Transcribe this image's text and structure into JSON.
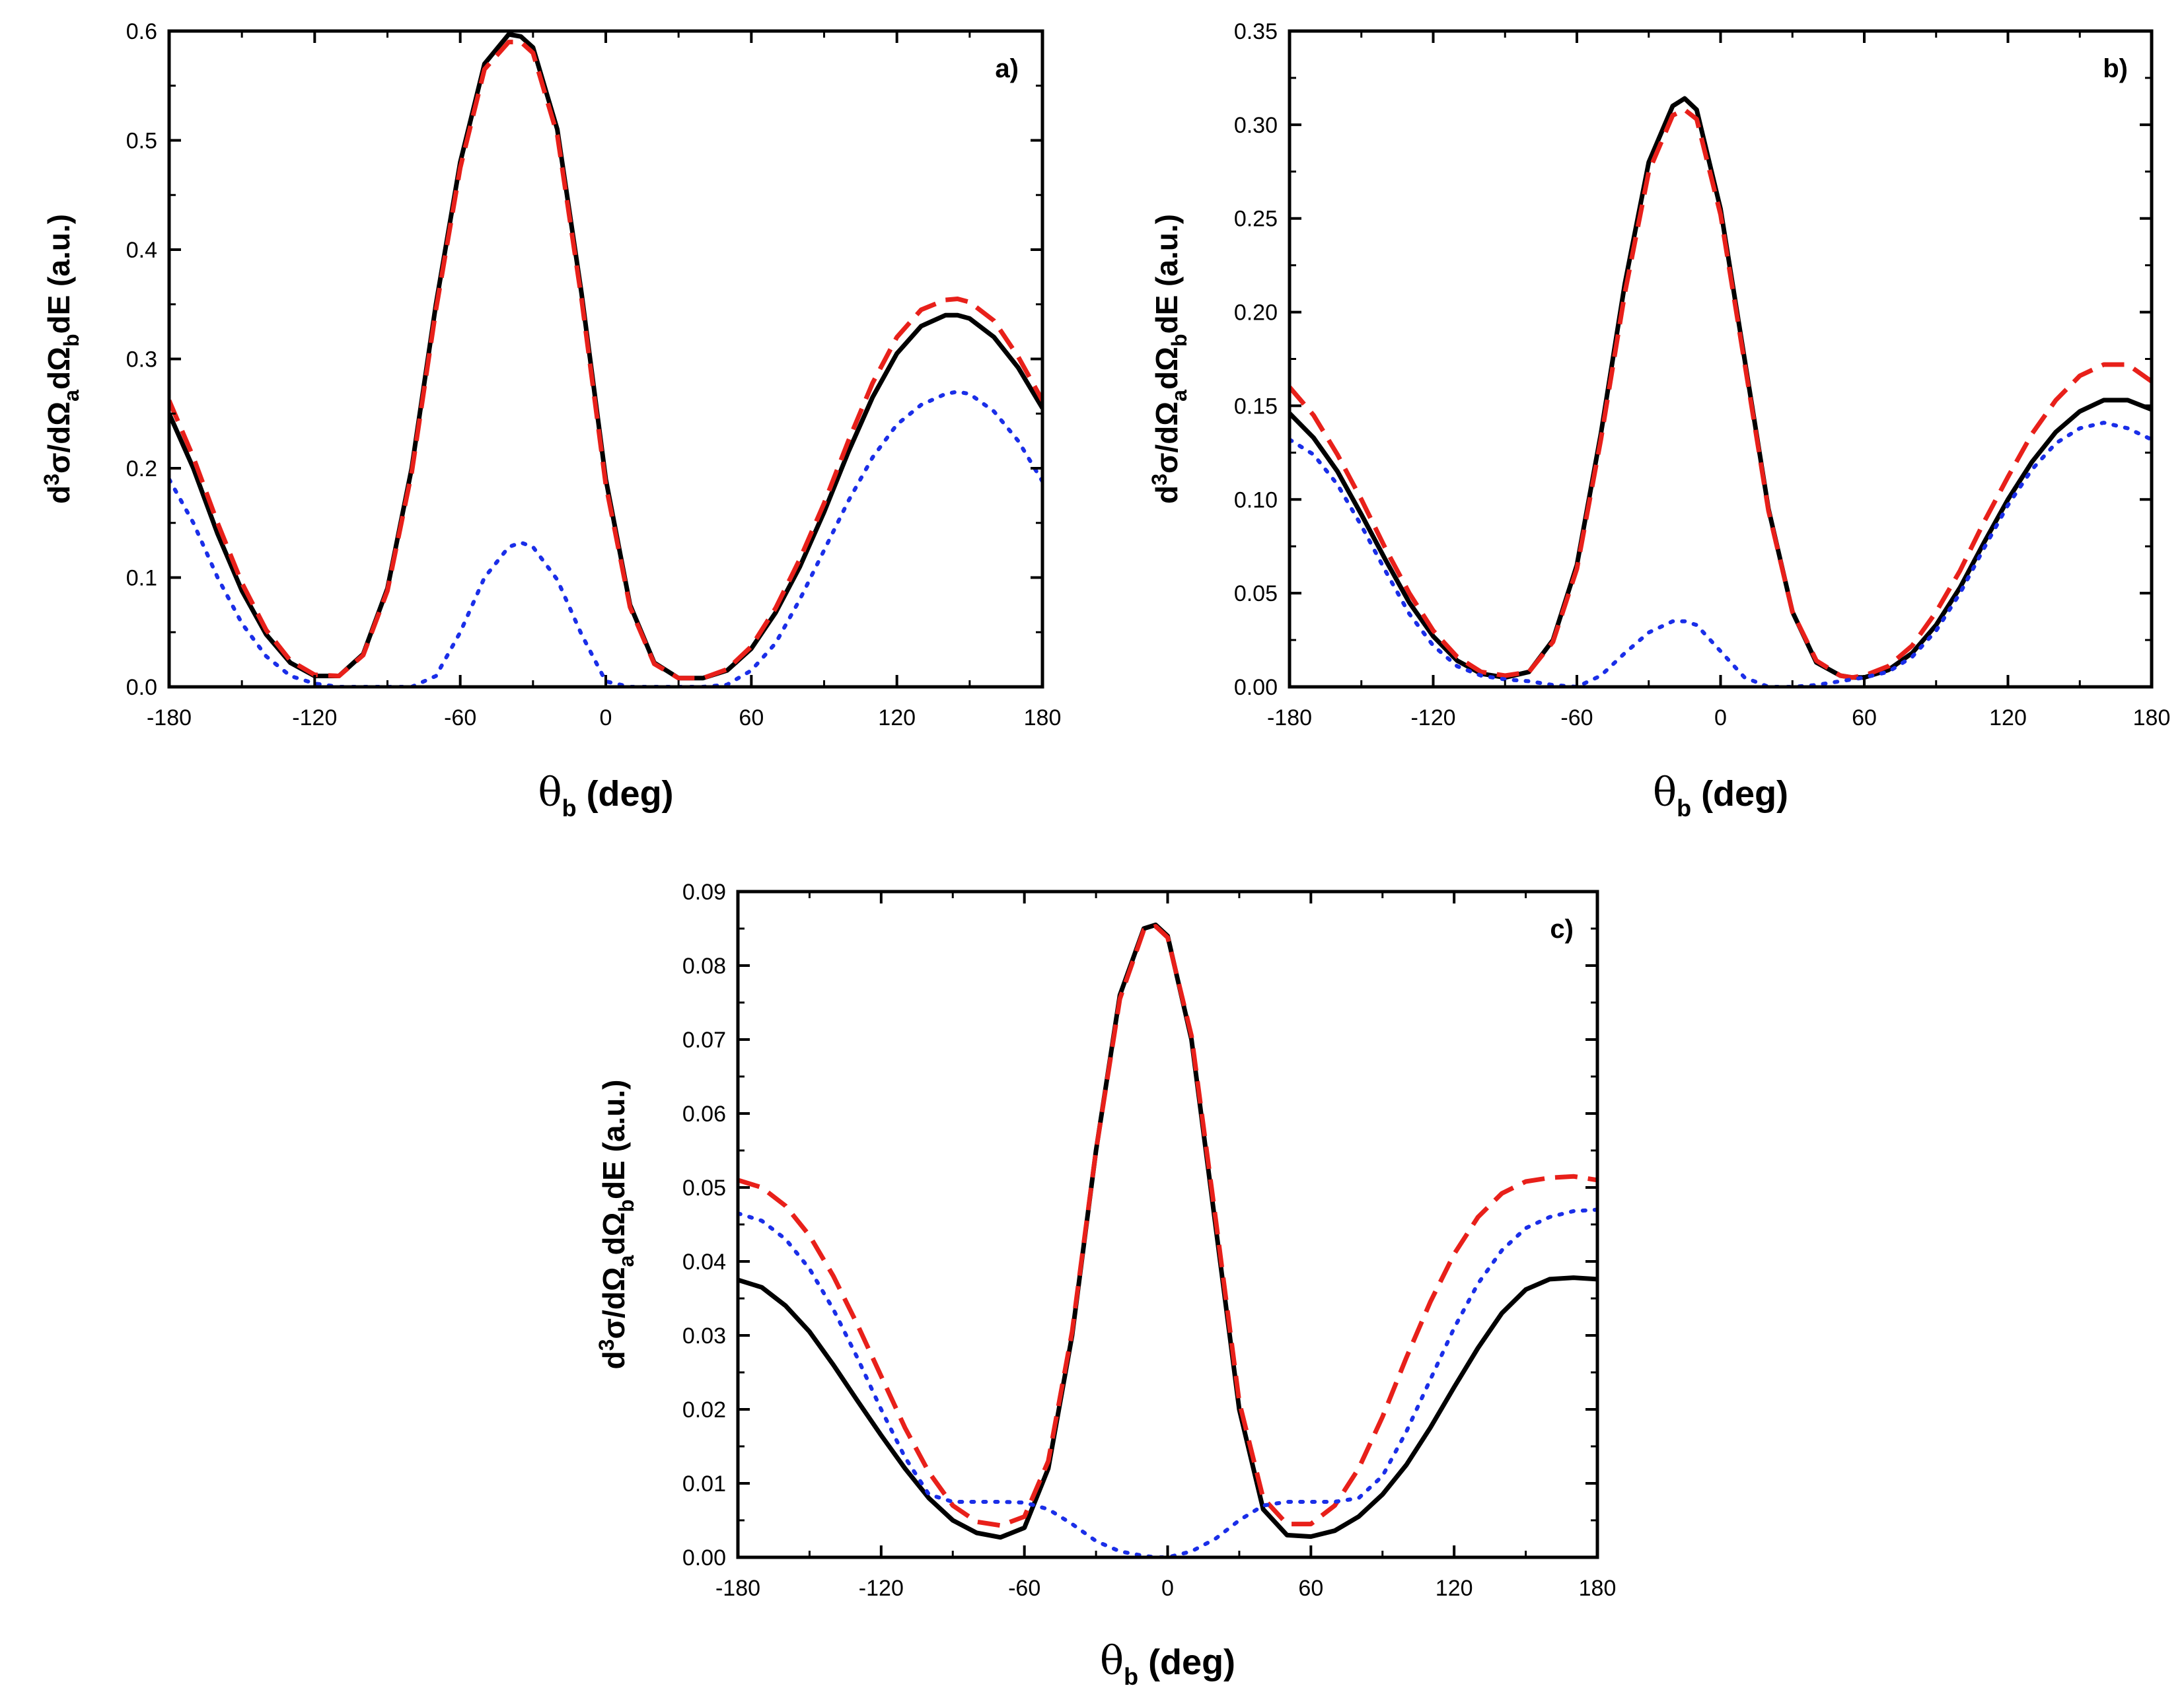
{
  "chart_data": [
    {
      "type": "line",
      "panel_label": "a)",
      "xlabel_symbol": "θ",
      "xlabel_sub": "b",
      "xlabel_unit": " (deg)",
      "ylabel_parts": {
        "d": "d",
        "sup": "3",
        "mid": "σ/dΩ",
        "sub1": "a",
        "dO": "dΩ",
        "sub2": "b",
        "end": "dE (a.u.)"
      },
      "xlim": [
        -180,
        180
      ],
      "ylim": [
        0,
        0.6
      ],
      "xticks": [
        -180,
        -120,
        -60,
        0,
        60,
        120,
        180
      ],
      "xtick_labels": [
        "-180",
        "-120",
        "-60",
        "0",
        "60",
        "120",
        "180"
      ],
      "yticks": [
        0,
        0.1,
        0.2,
        0.3,
        0.4,
        0.5,
        0.6
      ],
      "ytick_labels": [
        "0.0",
        "0.1",
        "0.2",
        "0.3",
        "0.4",
        "0.5",
        "0.6"
      ],
      "series": [
        {
          "name": "solid",
          "color": "#000000",
          "style": "solid",
          "x": [
            -180,
            -170,
            -160,
            -150,
            -140,
            -130,
            -120,
            -110,
            -100,
            -90,
            -80,
            -70,
            -60,
            -50,
            -40,
            -35,
            -30,
            -20,
            -10,
            0,
            10,
            20,
            30,
            40,
            50,
            60,
            70,
            80,
            90,
            100,
            110,
            120,
            130,
            140,
            145,
            150,
            160,
            170,
            180
          ],
          "y": [
            0.25,
            0.2,
            0.14,
            0.088,
            0.048,
            0.022,
            0.01,
            0.01,
            0.03,
            0.09,
            0.2,
            0.35,
            0.48,
            0.57,
            0.597,
            0.595,
            0.585,
            0.51,
            0.36,
            0.19,
            0.075,
            0.022,
            0.008,
            0.008,
            0.015,
            0.035,
            0.068,
            0.11,
            0.16,
            0.215,
            0.265,
            0.305,
            0.33,
            0.34,
            0.34,
            0.337,
            0.32,
            0.292,
            0.255
          ]
        },
        {
          "name": "dashed",
          "color": "#e8201a",
          "style": "dashed",
          "x": [
            -180,
            -170,
            -160,
            -150,
            -140,
            -130,
            -120,
            -110,
            -100,
            -90,
            -80,
            -70,
            -60,
            -50,
            -40,
            -35,
            -30,
            -20,
            -10,
            0,
            10,
            20,
            30,
            40,
            50,
            60,
            70,
            80,
            90,
            100,
            110,
            120,
            130,
            140,
            145,
            150,
            160,
            170,
            180
          ],
          "y": [
            0.262,
            0.21,
            0.15,
            0.095,
            0.052,
            0.024,
            0.011,
            0.01,
            0.029,
            0.088,
            0.196,
            0.345,
            0.475,
            0.565,
            0.59,
            0.59,
            0.58,
            0.505,
            0.355,
            0.185,
            0.073,
            0.021,
            0.008,
            0.008,
            0.016,
            0.037,
            0.072,
            0.117,
            0.168,
            0.225,
            0.278,
            0.32,
            0.345,
            0.354,
            0.355,
            0.352,
            0.335,
            0.302,
            0.262
          ]
        },
        {
          "name": "dotted",
          "color": "#1a2ee8",
          "style": "dotted",
          "x": [
            -180,
            -170,
            -160,
            -150,
            -140,
            -130,
            -120,
            -110,
            -100,
            -90,
            -80,
            -70,
            -60,
            -50,
            -40,
            -35,
            -30,
            -20,
            -10,
            0,
            10,
            20,
            30,
            40,
            50,
            60,
            70,
            80,
            90,
            100,
            110,
            120,
            130,
            140,
            145,
            150,
            160,
            170,
            180
          ],
          "y": [
            0.19,
            0.15,
            0.1,
            0.058,
            0.028,
            0.01,
            0.003,
            0.0,
            0.0,
            0.0,
            0.0,
            0.01,
            0.05,
            0.1,
            0.128,
            0.132,
            0.128,
            0.098,
            0.048,
            0.005,
            0.0,
            0.0,
            0.0,
            0.0,
            0.002,
            0.015,
            0.04,
            0.08,
            0.125,
            0.17,
            0.21,
            0.24,
            0.258,
            0.268,
            0.27,
            0.268,
            0.252,
            0.225,
            0.188
          ]
        }
      ]
    },
    {
      "type": "line",
      "panel_label": "b)",
      "xlabel_symbol": "θ",
      "xlabel_sub": "b",
      "xlabel_unit": " (deg)",
      "ylabel_parts": {
        "d": "d",
        "sup": "3",
        "mid": "σ/dΩ",
        "sub1": "a",
        "dO": "dΩ",
        "sub2": "b",
        "end": "dE (a.u.)"
      },
      "xlim": [
        -180,
        180
      ],
      "ylim": [
        0,
        0.35
      ],
      "xticks": [
        -180,
        -120,
        -60,
        0,
        60,
        120,
        180
      ],
      "xtick_labels": [
        "-180",
        "-120",
        "-60",
        "0",
        "60",
        "120",
        "180"
      ],
      "yticks": [
        0,
        0.05,
        0.1,
        0.15,
        0.2,
        0.25,
        0.3,
        0.35
      ],
      "ytick_labels": [
        "0.00",
        "0.05",
        "0.10",
        "0.15",
        "0.20",
        "0.25",
        "0.30",
        "0.35"
      ],
      "series": [
        {
          "name": "solid",
          "color": "#000000",
          "style": "solid",
          "x": [
            -180,
            -170,
            -160,
            -150,
            -140,
            -130,
            -120,
            -110,
            -100,
            -90,
            -80,
            -70,
            -60,
            -50,
            -40,
            -30,
            -20,
            -15,
            -10,
            0,
            10,
            20,
            30,
            40,
            50,
            55,
            60,
            70,
            80,
            90,
            100,
            110,
            120,
            130,
            140,
            150,
            160,
            170,
            180
          ],
          "y": [
            0.146,
            0.133,
            0.115,
            0.092,
            0.068,
            0.045,
            0.027,
            0.014,
            0.007,
            0.005,
            0.008,
            0.025,
            0.065,
            0.135,
            0.215,
            0.28,
            0.31,
            0.314,
            0.308,
            0.255,
            0.175,
            0.095,
            0.04,
            0.013,
            0.006,
            0.005,
            0.005,
            0.009,
            0.018,
            0.033,
            0.053,
            0.077,
            0.1,
            0.12,
            0.136,
            0.147,
            0.153,
            0.153,
            0.148
          ]
        },
        {
          "name": "dashed",
          "color": "#e8201a",
          "style": "dashed",
          "x": [
            -180,
            -170,
            -160,
            -150,
            -140,
            -130,
            -120,
            -110,
            -100,
            -90,
            -80,
            -70,
            -60,
            -50,
            -40,
            -30,
            -20,
            -15,
            -10,
            0,
            10,
            20,
            30,
            40,
            50,
            55,
            60,
            70,
            80,
            90,
            100,
            110,
            120,
            130,
            140,
            150,
            160,
            170,
            180
          ],
          "y": [
            0.16,
            0.145,
            0.124,
            0.1,
            0.074,
            0.05,
            0.03,
            0.016,
            0.008,
            0.006,
            0.008,
            0.024,
            0.063,
            0.132,
            0.21,
            0.275,
            0.305,
            0.308,
            0.303,
            0.252,
            0.173,
            0.094,
            0.04,
            0.014,
            0.006,
            0.005,
            0.006,
            0.011,
            0.022,
            0.04,
            0.062,
            0.088,
            0.112,
            0.135,
            0.153,
            0.166,
            0.172,
            0.172,
            0.163
          ]
        },
        {
          "name": "dotted",
          "color": "#1a2ee8",
          "style": "dotted",
          "x": [
            -180,
            -170,
            -160,
            -150,
            -140,
            -130,
            -120,
            -110,
            -100,
            -90,
            -80,
            -70,
            -60,
            -50,
            -40,
            -30,
            -20,
            -15,
            -10,
            0,
            10,
            20,
            30,
            40,
            50,
            55,
            60,
            70,
            80,
            90,
            100,
            110,
            120,
            130,
            140,
            150,
            160,
            170,
            180
          ],
          "y": [
            0.132,
            0.124,
            0.108,
            0.086,
            0.062,
            0.039,
            0.022,
            0.011,
            0.006,
            0.004,
            0.003,
            0.001,
            0.0,
            0.006,
            0.018,
            0.029,
            0.035,
            0.035,
            0.033,
            0.019,
            0.005,
            0.0,
            0.0,
            0.001,
            0.003,
            0.004,
            0.005,
            0.008,
            0.016,
            0.03,
            0.05,
            0.074,
            0.097,
            0.116,
            0.13,
            0.138,
            0.141,
            0.138,
            0.132
          ]
        }
      ]
    },
    {
      "type": "line",
      "panel_label": "c)",
      "xlabel_symbol": "θ",
      "xlabel_sub": "b",
      "xlabel_unit": " (deg)",
      "ylabel_parts": {
        "d": "d",
        "sup": "3",
        "mid": "σ/dΩ",
        "sub1": "a",
        "dO": "dΩ",
        "sub2": "b",
        "end": "dE (a.u.)"
      },
      "xlim": [
        -180,
        180
      ],
      "ylim": [
        0,
        0.09
      ],
      "xticks": [
        -180,
        -120,
        -60,
        0,
        60,
        120,
        180
      ],
      "xtick_labels": [
        "-180",
        "-120",
        "-60",
        "0",
        "60",
        "120",
        "180"
      ],
      "yticks": [
        0,
        0.01,
        0.02,
        0.03,
        0.04,
        0.05,
        0.06,
        0.07,
        0.08,
        0.09
      ],
      "ytick_labels": [
        "0.00",
        "0.01",
        "0.02",
        "0.03",
        "0.04",
        "0.05",
        "0.06",
        "0.07",
        "0.08",
        "0.09"
      ],
      "series": [
        {
          "name": "solid",
          "color": "#000000",
          "style": "solid",
          "x": [
            -180,
            -170,
            -160,
            -150,
            -140,
            -130,
            -120,
            -110,
            -100,
            -90,
            -80,
            -70,
            -60,
            -50,
            -40,
            -30,
            -20,
            -10,
            -5,
            0,
            10,
            20,
            30,
            40,
            50,
            60,
            70,
            80,
            90,
            100,
            110,
            120,
            130,
            140,
            150,
            160,
            170,
            180
          ],
          "y": [
            0.0375,
            0.0365,
            0.034,
            0.0305,
            0.026,
            0.0212,
            0.0165,
            0.012,
            0.008,
            0.005,
            0.0033,
            0.0027,
            0.004,
            0.012,
            0.03,
            0.055,
            0.076,
            0.085,
            0.0855,
            0.084,
            0.07,
            0.045,
            0.02,
            0.0065,
            0.003,
            0.0028,
            0.0036,
            0.0055,
            0.0085,
            0.0125,
            0.0175,
            0.023,
            0.0283,
            0.033,
            0.0362,
            0.0376,
            0.0378,
            0.0376
          ]
        },
        {
          "name": "dashed",
          "color": "#e8201a",
          "style": "dashed",
          "x": [
            -180,
            -170,
            -160,
            -150,
            -140,
            -130,
            -120,
            -110,
            -100,
            -90,
            -80,
            -70,
            -60,
            -50,
            -40,
            -30,
            -20,
            -10,
            -5,
            0,
            10,
            20,
            30,
            40,
            50,
            60,
            70,
            80,
            90,
            100,
            110,
            120,
            130,
            140,
            150,
            160,
            170,
            180
          ],
          "y": [
            0.051,
            0.05,
            0.0475,
            0.0435,
            0.038,
            0.0315,
            0.0245,
            0.0175,
            0.0115,
            0.007,
            0.0048,
            0.0043,
            0.0055,
            0.013,
            0.0305,
            0.055,
            0.0755,
            0.0848,
            0.0853,
            0.0838,
            0.0705,
            0.046,
            0.021,
            0.008,
            0.0045,
            0.0045,
            0.007,
            0.012,
            0.019,
            0.027,
            0.0345,
            0.041,
            0.046,
            0.0492,
            0.0508,
            0.0513,
            0.0515,
            0.051
          ]
        },
        {
          "name": "dotted",
          "color": "#1a2ee8",
          "style": "dotted",
          "x": [
            -180,
            -170,
            -160,
            -150,
            -140,
            -130,
            -120,
            -110,
            -100,
            -90,
            -80,
            -70,
            -60,
            -50,
            -40,
            -30,
            -20,
            -10,
            -5,
            0,
            10,
            20,
            30,
            40,
            50,
            60,
            70,
            80,
            90,
            100,
            110,
            120,
            130,
            140,
            150,
            160,
            170,
            180
          ],
          "y": [
            0.0465,
            0.0455,
            0.043,
            0.039,
            0.0335,
            0.027,
            0.02,
            0.0135,
            0.0085,
            0.0075,
            0.0075,
            0.0075,
            0.0074,
            0.0065,
            0.0045,
            0.0022,
            0.0008,
            0.0002,
            0.0,
            0.0,
            0.0008,
            0.0025,
            0.005,
            0.007,
            0.0075,
            0.0075,
            0.0075,
            0.008,
            0.011,
            0.017,
            0.024,
            0.031,
            0.037,
            0.0415,
            0.0445,
            0.046,
            0.0468,
            0.047
          ]
        }
      ]
    }
  ]
}
